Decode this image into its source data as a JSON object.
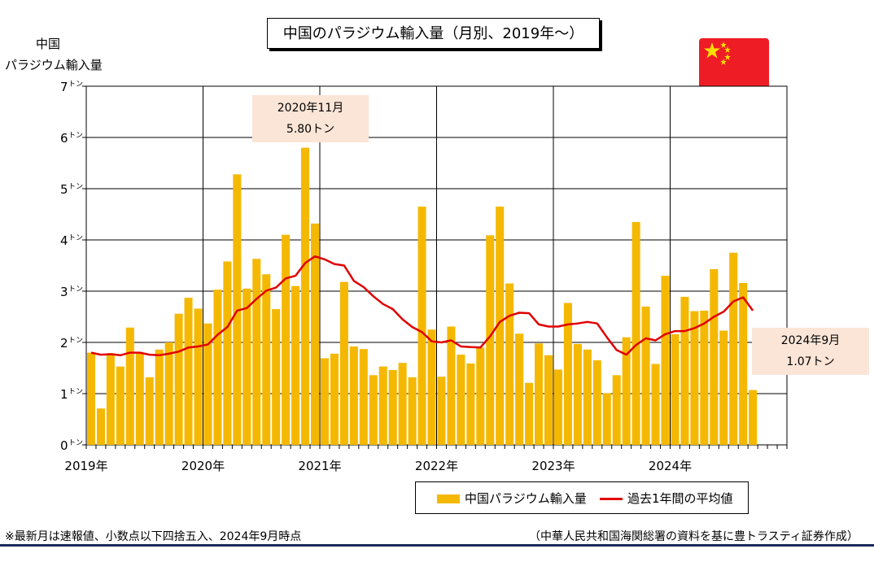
{
  "title": "中国のパラジウム輸入量（月別、2019年～）",
  "y_axis_label_line1": "中国",
  "y_axis_label_line2": "パラジウム輸入量",
  "colors": {
    "bar": "#f5b800",
    "line": "#e00000",
    "callout_bg": "#fbe5d6",
    "flag_red": "#ee1c25",
    "flag_star": "#ffde00"
  },
  "callouts": {
    "peak": {
      "line1": "2020年11月",
      "line2": "5.80トン"
    },
    "latest": {
      "line1": "2024年9月",
      "line2": "1.07トン"
    }
  },
  "legend": {
    "bar_label": "中国パラジウム輸入量",
    "line_label": "過去1年間の平均値"
  },
  "footnotes": {
    "left": "※最新月は速報値、小数点以下四捨五入、2024年9月時点",
    "right": "（中華人民共和国海関総署の資料を基に豊トラスティ証券作成）"
  },
  "chart_data": {
    "type": "bar",
    "ylim": [
      0,
      7
    ],
    "y_ticks": [
      0,
      1,
      2,
      3,
      4,
      5,
      6,
      7
    ],
    "y_unit": "トン",
    "x_tick_labels": [
      "2019年",
      "2020年",
      "2021年",
      "2022年",
      "2023年",
      "2024年"
    ],
    "start_month": "2019-01",
    "total_months": 72,
    "grid": true,
    "series": [
      {
        "name": "中国パラジウム輸入量",
        "type": "bar",
        "values": [
          1.8,
          0.71,
          1.79,
          1.53,
          2.29,
          1.8,
          1.32,
          1.86,
          2.0,
          2.56,
          2.87,
          2.66,
          2.37,
          3.03,
          3.58,
          5.28,
          3.05,
          3.63,
          3.33,
          2.65,
          4.1,
          3.1,
          5.8,
          4.32,
          1.69,
          1.78,
          3.18,
          1.92,
          1.87,
          1.36,
          1.53,
          1.46,
          1.6,
          1.32,
          4.65,
          2.25,
          1.33,
          2.31,
          1.76,
          1.59,
          1.9,
          4.09,
          4.65,
          3.15,
          2.17,
          1.21,
          1.98,
          1.75,
          1.47,
          2.77,
          1.97,
          1.86,
          1.65,
          1.01,
          1.36,
          2.1,
          4.35,
          2.7,
          1.58,
          3.3,
          2.16,
          2.89,
          2.61,
          2.62,
          3.43,
          2.23,
          3.75,
          3.16,
          1.07
        ]
      },
      {
        "name": "過去1年間の平均値",
        "type": "line",
        "values": [
          1.8,
          1.76,
          1.77,
          1.75,
          1.8,
          1.8,
          1.76,
          1.75,
          1.78,
          1.82,
          1.9,
          1.92,
          1.96,
          2.15,
          2.3,
          2.62,
          2.67,
          2.85,
          3.01,
          3.07,
          3.25,
          3.3,
          3.55,
          3.68,
          3.62,
          3.53,
          3.5,
          3.2,
          3.08,
          2.9,
          2.75,
          2.65,
          2.45,
          2.3,
          2.2,
          2.02,
          2.0,
          2.04,
          1.92,
          1.91,
          1.9,
          2.12,
          2.4,
          2.52,
          2.58,
          2.57,
          2.35,
          2.31,
          2.31,
          2.35,
          2.37,
          2.4,
          2.37,
          2.1,
          1.85,
          1.76,
          1.95,
          2.08,
          2.04,
          2.16,
          2.22,
          2.22,
          2.28,
          2.37,
          2.5,
          2.6,
          2.8,
          2.88,
          2.62
        ]
      }
    ]
  }
}
